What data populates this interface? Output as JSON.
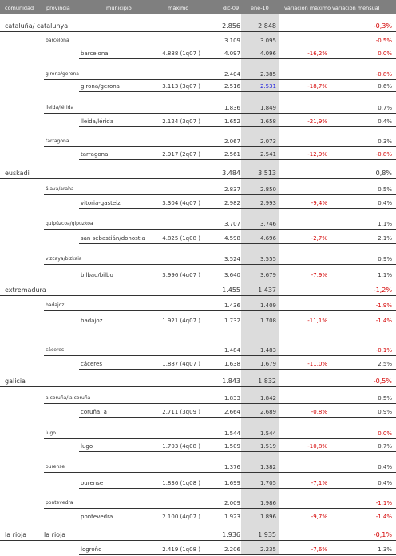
{
  "header": {
    "comunidad": "comunidad",
    "provincia": "provincia",
    "municipio": "municipio",
    "maximo": "máximo",
    "dic": "dic-09",
    "ene": "ene-10",
    "var_max": "variación máximo",
    "var_mens": "variación mensual"
  },
  "rows": [
    {
      "kind": "comunidad",
      "comunidad": "cataluña/ catalunya",
      "provincia": "",
      "dic": "2.856",
      "ene": "2.848",
      "var_mens": "-0,3%",
      "var_mens_color": "red"
    },
    {
      "kind": "provincia",
      "provincia": "barcelona",
      "dic": "3.109",
      "ene": "3.095",
      "var_mens": "-0,5%",
      "var_mens_color": "red"
    },
    {
      "kind": "municipio",
      "municipio": "barcelona",
      "maximo": "4.888 (1q07 )",
      "dic": "4.097",
      "ene": "4.096",
      "var_max": "-16,2%",
      "var_mens": "0,0%",
      "var_mens_color": "red"
    },
    {
      "kind": "provincia",
      "provincia": "girona/gerona",
      "dic": "2.404",
      "ene": "2.385",
      "var_mens": "-0,8%",
      "var_mens_color": "red"
    },
    {
      "kind": "municipio",
      "municipio": "girona/gerona",
      "maximo": "3.113 (3q07 )",
      "dic": "2.516",
      "ene": "2.531",
      "ene_color": "blue",
      "var_max": "-18,7%",
      "var_mens": "0,6%"
    },
    {
      "kind": "provincia",
      "provincia": "lleida/lérida",
      "dic": "1.836",
      "ene": "1.849",
      "var_mens": "0,7%"
    },
    {
      "kind": "municipio",
      "municipio": "lleida/lérida",
      "maximo": "2.124 (3q07 )",
      "dic": "1.652",
      "ene": "1.658",
      "var_max": "-21,9%",
      "var_mens": "0,4%"
    },
    {
      "kind": "provincia",
      "provincia": "tarragona",
      "dic": "2.067",
      "ene": "2.073",
      "var_mens": "0,3%"
    },
    {
      "kind": "municipio",
      "municipio": "tarragona",
      "maximo": "2.917 (2q07 )",
      "dic": "2.561",
      "ene": "2.541",
      "var_max": "-12,9%",
      "var_mens": "-0,8%",
      "var_mens_color": "red"
    },
    {
      "kind": "comunidad",
      "comunidad": "euskadi",
      "provincia": "",
      "dic": "3.484",
      "ene": "3.513",
      "var_mens": "0,8%"
    },
    {
      "kind": "provincia",
      "provincia": "álava/araba",
      "dic": "2.837",
      "ene": "2.850",
      "var_mens": "0,5%"
    },
    {
      "kind": "municipio",
      "municipio": "vitoria-gasteiz",
      "maximo": "3.304 (4q07 )",
      "dic": "2.982",
      "ene": "2.993",
      "var_max": "-9,4%",
      "var_mens": "0,4%"
    },
    {
      "kind": "provincia",
      "provincia": "guipúzcoa/gipuzkoa",
      "dic": "3.707",
      "ene": "3.746",
      "var_mens": "1,1%"
    },
    {
      "kind": "municipio",
      "municipio": "san sebastián/donostia",
      "maximo": "4.825 (1q08 )",
      "dic": "4.598",
      "ene": "4.696",
      "var_max": "-2,7%",
      "var_mens": "2,1%"
    },
    {
      "kind": "provincia",
      "provincia": "vizcaya/bizkaia",
      "dic": "3.524",
      "ene": "3.555",
      "var_mens": "0,9%"
    },
    {
      "kind": "municipio",
      "municipio": "bilbao/bilbo",
      "maximo": "3.996 (4q07 )",
      "dic": "3.640",
      "ene": "3.679",
      "var_max": "-7,9%",
      "var_mens": "1,1%",
      "clipped": true
    },
    {
      "kind": "comunidad",
      "comunidad": "extremadura",
      "provincia": "",
      "dic": "1.455",
      "ene": "1.437",
      "var_mens": "-1,2%",
      "var_mens_color": "red"
    },
    {
      "kind": "provincia",
      "provincia": "badajoz",
      "dic": "1.436",
      "ene": "1.409",
      "var_mens": "-1,9%",
      "var_mens_color": "red"
    },
    {
      "kind": "municipio",
      "municipio": "badajoz",
      "maximo": "1.921 (4q07 )",
      "dic": "1.732",
      "ene": "1.708",
      "var_max": "-11,1%",
      "var_mens": "-1,4%",
      "var_mens_color": "red"
    },
    {
      "kind": "provincia",
      "provincia": "cáceres",
      "dic": "1.484",
      "ene": "1.483",
      "var_mens": "-0,1%",
      "var_mens_color": "red"
    },
    {
      "kind": "municipio",
      "municipio": "cáceres",
      "maximo": "1.887 (4q07 )",
      "dic": "1.638",
      "ene": "1.679",
      "var_max": "-11,0%",
      "var_mens": "2,5%"
    },
    {
      "kind": "comunidad",
      "comunidad": "galicia",
      "provincia": "",
      "dic": "1.843",
      "ene": "1.832",
      "var_mens": "-0,5%",
      "var_mens_color": "red"
    },
    {
      "kind": "provincia",
      "provincia": "a coruña/la coruña",
      "dic": "1.833",
      "ene": "1.842",
      "var_mens": "0,5%"
    },
    {
      "kind": "municipio",
      "municipio": "coruña, a",
      "maximo": "2.711 (3q09 )",
      "dic": "2.664",
      "ene": "2.689",
      "var_max": "-0,8%",
      "var_mens": "0,9%"
    },
    {
      "kind": "provincia",
      "provincia": "lugo",
      "dic": "1.544",
      "ene": "1.544",
      "var_mens": "0,0%",
      "var_mens_color": "red"
    },
    {
      "kind": "municipio",
      "municipio": "lugo",
      "maximo": "1.703 (4q08 )",
      "dic": "1.509",
      "ene": "1.519",
      "var_max": "-10,8%",
      "var_mens": "0,7%"
    },
    {
      "kind": "provincia",
      "provincia": "ourense",
      "dic": "1.376",
      "ene": "1.382",
      "var_mens": "0,4%"
    },
    {
      "kind": "municipio",
      "municipio": "ourense",
      "maximo": "1.836 (1q08 )",
      "dic": "1.699",
      "ene": "1.705",
      "var_max": "-7,1%",
      "var_mens": "0,4%"
    },
    {
      "kind": "provincia",
      "provincia": "pontevedra",
      "dic": "2.009",
      "ene": "1.986",
      "var_mens": "-1,1%",
      "var_mens_color": "red"
    },
    {
      "kind": "municipio",
      "municipio": "pontevedra",
      "maximo": "2.100 (4q07 )",
      "dic": "1.923",
      "ene": "1.896",
      "var_max": "-9,7%",
      "var_mens": "-1,4%",
      "var_mens_color": "red"
    },
    {
      "kind": "comunidad",
      "comunidad": "la rioja",
      "provincia": "la rioja",
      "dic": "1.936",
      "ene": "1.935",
      "var_mens": "-0,1%",
      "var_mens_color": "red"
    },
    {
      "kind": "municipio",
      "municipio": "logroño",
      "maximo": "2.419 (1q08 )",
      "dic": "2.206",
      "ene": "2.235",
      "var_max": "-7,6%",
      "var_mens": "1,3%"
    }
  ]
}
